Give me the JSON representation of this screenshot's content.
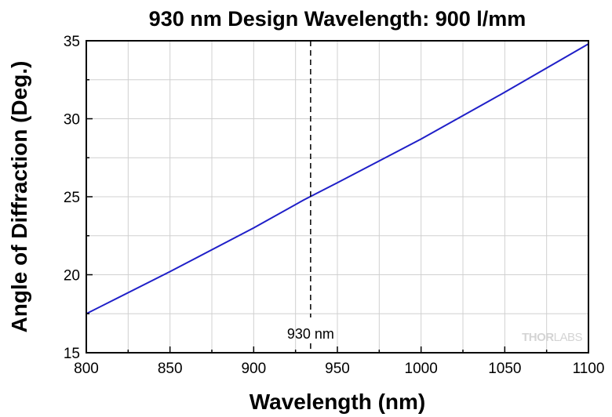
{
  "chart_data": {
    "type": "line",
    "title": "930 nm Design Wavelength: 900 l/mm",
    "xlabel": "Wavelength (nm)",
    "ylabel": "Angle of Diffraction (Deg.)",
    "xlim": [
      800,
      1100
    ],
    "ylim": [
      15,
      35
    ],
    "x_ticks": [
      800,
      850,
      900,
      950,
      1000,
      1050,
      1100
    ],
    "y_ticks": [
      15,
      20,
      25,
      30,
      35
    ],
    "grid": true,
    "series": [
      {
        "color": "#1f1fc8",
        "x": [
          800,
          850,
          900,
          930,
          950,
          1000,
          1050,
          1100
        ],
        "y": [
          17.5,
          20.2,
          23.0,
          24.8,
          25.9,
          28.7,
          31.7,
          34.8
        ]
      }
    ],
    "annotation": {
      "x": 934,
      "label": "930 nm"
    }
  },
  "logo": {
    "prefix": "THOR",
    "suffix": "LABS"
  }
}
